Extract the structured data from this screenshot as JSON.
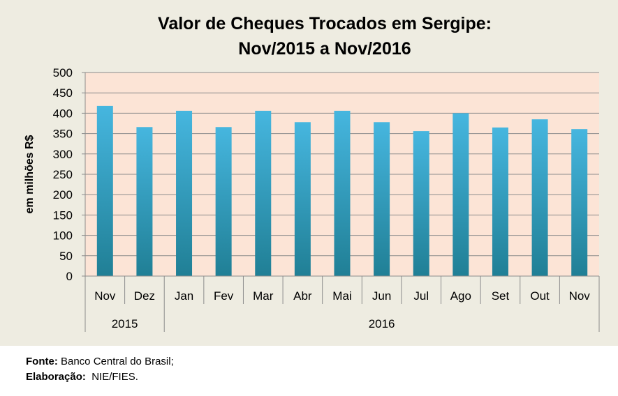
{
  "chart_data": {
    "type": "bar",
    "title_lines": [
      "Valor de Cheques Trocados em Sergipe:",
      "Nov/2015 a  Nov/2016"
    ],
    "ylabel": "em milhões R$",
    "ylim": [
      0,
      500
    ],
    "yticks": [
      0,
      50,
      100,
      150,
      200,
      250,
      300,
      350,
      400,
      450,
      500
    ],
    "categories": [
      "Nov",
      "Dez",
      "Jan",
      "Fev",
      "Mar",
      "Abr",
      "Mai",
      "Jun",
      "Jul",
      "Ago",
      "Set",
      "Out",
      "Nov"
    ],
    "values": [
      418,
      366,
      406,
      366,
      406,
      378,
      406,
      378,
      356,
      400,
      365,
      385,
      361
    ],
    "year_groups": [
      {
        "label": "2015",
        "count": 2
      },
      {
        "label": "2016",
        "count": 11
      }
    ],
    "grid": true,
    "colors": {
      "plot_bg": "#fce4d6",
      "frame_bg": "#eeece1",
      "bar_top": "#46b6df",
      "bar_bottom": "#207f95",
      "grid": "#8c8c8c"
    }
  },
  "footer": {
    "source_label": "Fonte:",
    "source_text": " Banco Central do Brasil;",
    "credit_label": "Elaboração:",
    "credit_text": "  NIE/FIES."
  }
}
